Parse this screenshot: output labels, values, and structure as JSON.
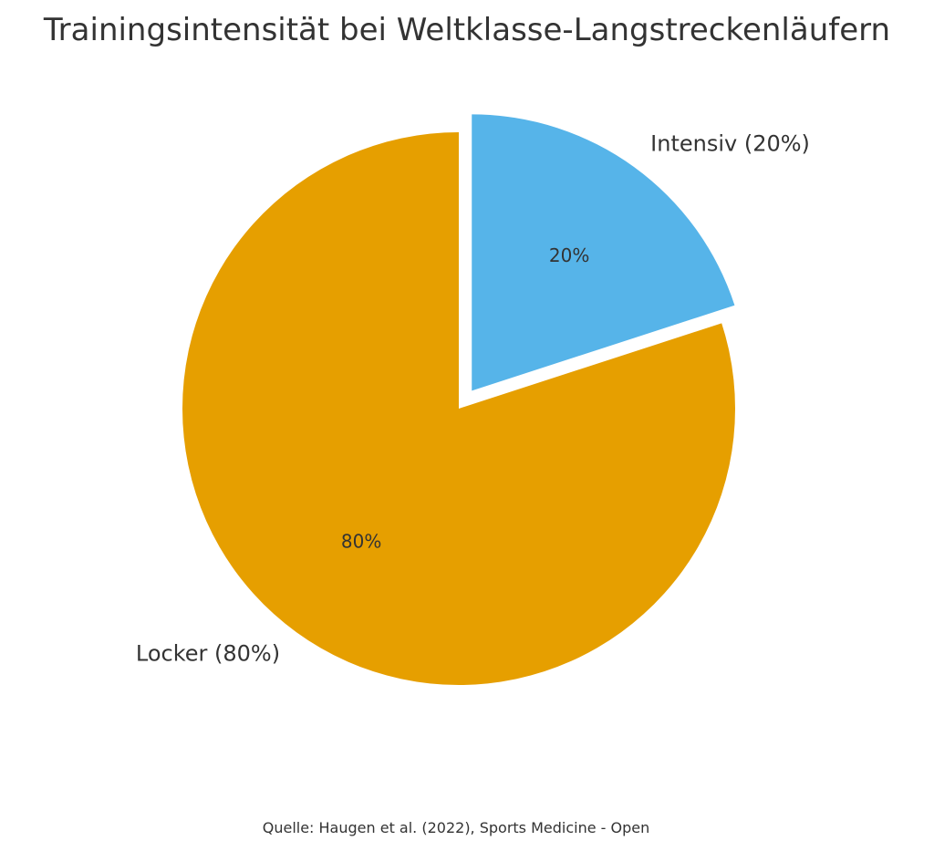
{
  "chart_data": {
    "type": "pie",
    "title": "Trainingsintensität bei Weltklasse-Langstreckenläufern",
    "start_angle_deg": 90,
    "direction": "clockwise",
    "slices": [
      {
        "name": "Intensiv",
        "value": 20,
        "label": "Intensiv (20%)",
        "pct_label": "20%",
        "color": "#56B4E9",
        "exploded": true
      },
      {
        "name": "Locker",
        "value": 80,
        "label": "Locker (80%)",
        "pct_label": "80%",
        "color": "#E69F00",
        "exploded": false
      }
    ],
    "source": "Quelle: Haugen et al. (2022), Sports Medicine - Open"
  }
}
